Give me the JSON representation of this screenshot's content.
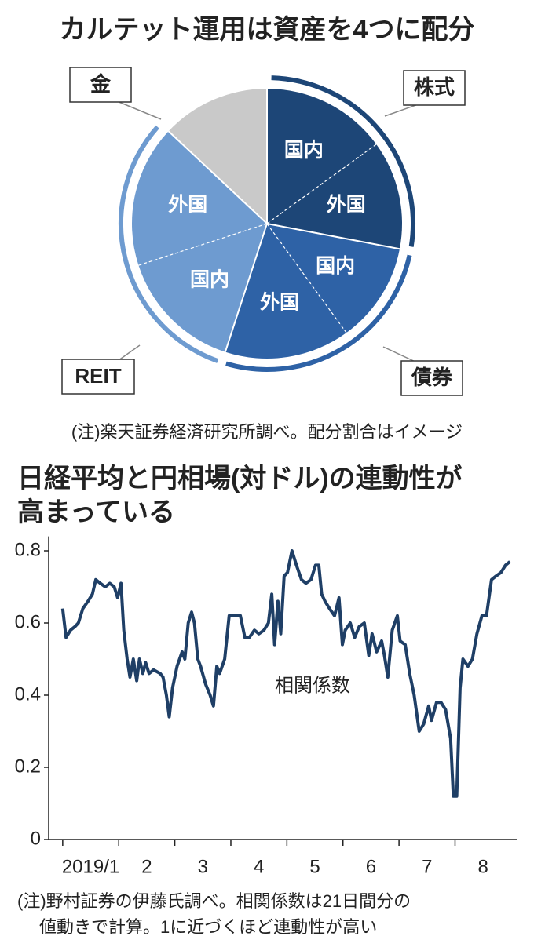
{
  "chart_data": [
    {
      "type": "pie",
      "title": "カルテット運用は資産を4つに配分",
      "note": "(注)楽天証券経済研究所調べ。配分割合はイメージ",
      "groups": [
        {
          "name": "株式",
          "color": "#1d4677",
          "labels": [
            "国内",
            "外国"
          ],
          "values": [
            15,
            13
          ]
        },
        {
          "name": "債券",
          "color": "#2e62a6",
          "labels": [
            "国内",
            "外国"
          ],
          "values": [
            12,
            15
          ]
        },
        {
          "name": "REIT",
          "color": "#6e9bd0",
          "labels": [
            "国内",
            "外国"
          ],
          "values": [
            15,
            17
          ]
        },
        {
          "name": "金",
          "color": "#c9c9c9",
          "values": [
            13
          ]
        }
      ]
    },
    {
      "type": "line",
      "title": [
        "日経平均と円相場(対ドル)の連動性が",
        "高まっている"
      ],
      "note": [
        "(注)野村証券の伊藤氏調べ。相関係数は21日間分の",
        "値動きで計算。1に近づくほど連動性が高い"
      ],
      "x": [
        0,
        0.6,
        1.4,
        2.2,
        2.8,
        3.6,
        4.5,
        5.3,
        5.9,
        6.7,
        7.6,
        8.4,
        9.2,
        9.8,
        10.4,
        10.9,
        11.5,
        12,
        12.6,
        13.2,
        13.7,
        14.3,
        14.8,
        15.4,
        16.2,
        17.4,
        17.9,
        18.5,
        19,
        19.6,
        20.4,
        21.3,
        21.8,
        22.4,
        23,
        23.5,
        24.1,
        24.6,
        25.5,
        26.3,
        26.9,
        27.5,
        28,
        28.9,
        29.7,
        30.5,
        31.7,
        32.5,
        33.3,
        34.2,
        35,
        35.9,
        36.7,
        37.3,
        37.8,
        38.4,
        38.9,
        39.5,
        40.1,
        40.9,
        41.7,
        42.6,
        43.4,
        44.3,
        45.1,
        45.7,
        46.2,
        46.8,
        47.6,
        48.5,
        49.3,
        49.9,
        50.4,
        51.3,
        52.1,
        52.9,
        53.8,
        54.6,
        55.2,
        56,
        56.9,
        57.4,
        58,
        58.8,
        59.7,
        60.2,
        61.1,
        61.9,
        62.7,
        63.6,
        64.4,
        65.3,
        65.8,
        66.7,
        67.5,
        68.3,
        69.2,
        69.7,
        70.3,
        70.9,
        71.4,
        72.3,
        73.1,
        73.9,
        74.8,
        75.6,
        76.5,
        77.3,
        78.2,
        79,
        79.8
      ],
      "series": [
        {
          "name": "相関係数",
          "color": "#1f3f66",
          "values": [
            0.64,
            0.56,
            0.58,
            0.59,
            0.6,
            0.64,
            0.66,
            0.68,
            0.72,
            0.71,
            0.7,
            0.71,
            0.7,
            0.67,
            0.71,
            0.58,
            0.5,
            0.45,
            0.5,
            0.44,
            0.5,
            0.46,
            0.49,
            0.46,
            0.47,
            0.46,
            0.45,
            0.4,
            0.34,
            0.42,
            0.48,
            0.52,
            0.5,
            0.6,
            0.63,
            0.6,
            0.5,
            0.48,
            0.43,
            0.4,
            0.37,
            0.48,
            0.46,
            0.5,
            0.62,
            0.62,
            0.62,
            0.56,
            0.56,
            0.58,
            0.57,
            0.58,
            0.6,
            0.68,
            0.54,
            0.66,
            0.57,
            0.73,
            0.74,
            0.8,
            0.76,
            0.72,
            0.71,
            0.72,
            0.76,
            0.76,
            0.68,
            0.66,
            0.64,
            0.62,
            0.67,
            0.54,
            0.58,
            0.6,
            0.56,
            0.59,
            0.6,
            0.51,
            0.57,
            0.52,
            0.55,
            0.51,
            0.45,
            0.58,
            0.62,
            0.55,
            0.54,
            0.46,
            0.4,
            0.3,
            0.32,
            0.37,
            0.33,
            0.38,
            0.38,
            0.36,
            0.28,
            0.12,
            0.12,
            0.42,
            0.5,
            0.48,
            0.5,
            0.57,
            0.62,
            0.62,
            0.72,
            0.73,
            0.74,
            0.76,
            0.77
          ]
        }
      ],
      "xlim": [
        -2.5,
        81
      ],
      "xticks": [
        {
          "value": 0,
          "label": "2019/1"
        },
        {
          "value": 10,
          "label": "2"
        },
        {
          "value": 20,
          "label": "3"
        },
        {
          "value": 30,
          "label": "4"
        },
        {
          "value": 40,
          "label": "5"
        },
        {
          "value": 50,
          "label": "6"
        },
        {
          "value": 60,
          "label": "7"
        },
        {
          "value": 70,
          "label": "8"
        }
      ],
      "ylim": [
        0,
        0.84
      ],
      "yticks": [
        0,
        0.2,
        0.4,
        0.6,
        0.8
      ]
    }
  ]
}
